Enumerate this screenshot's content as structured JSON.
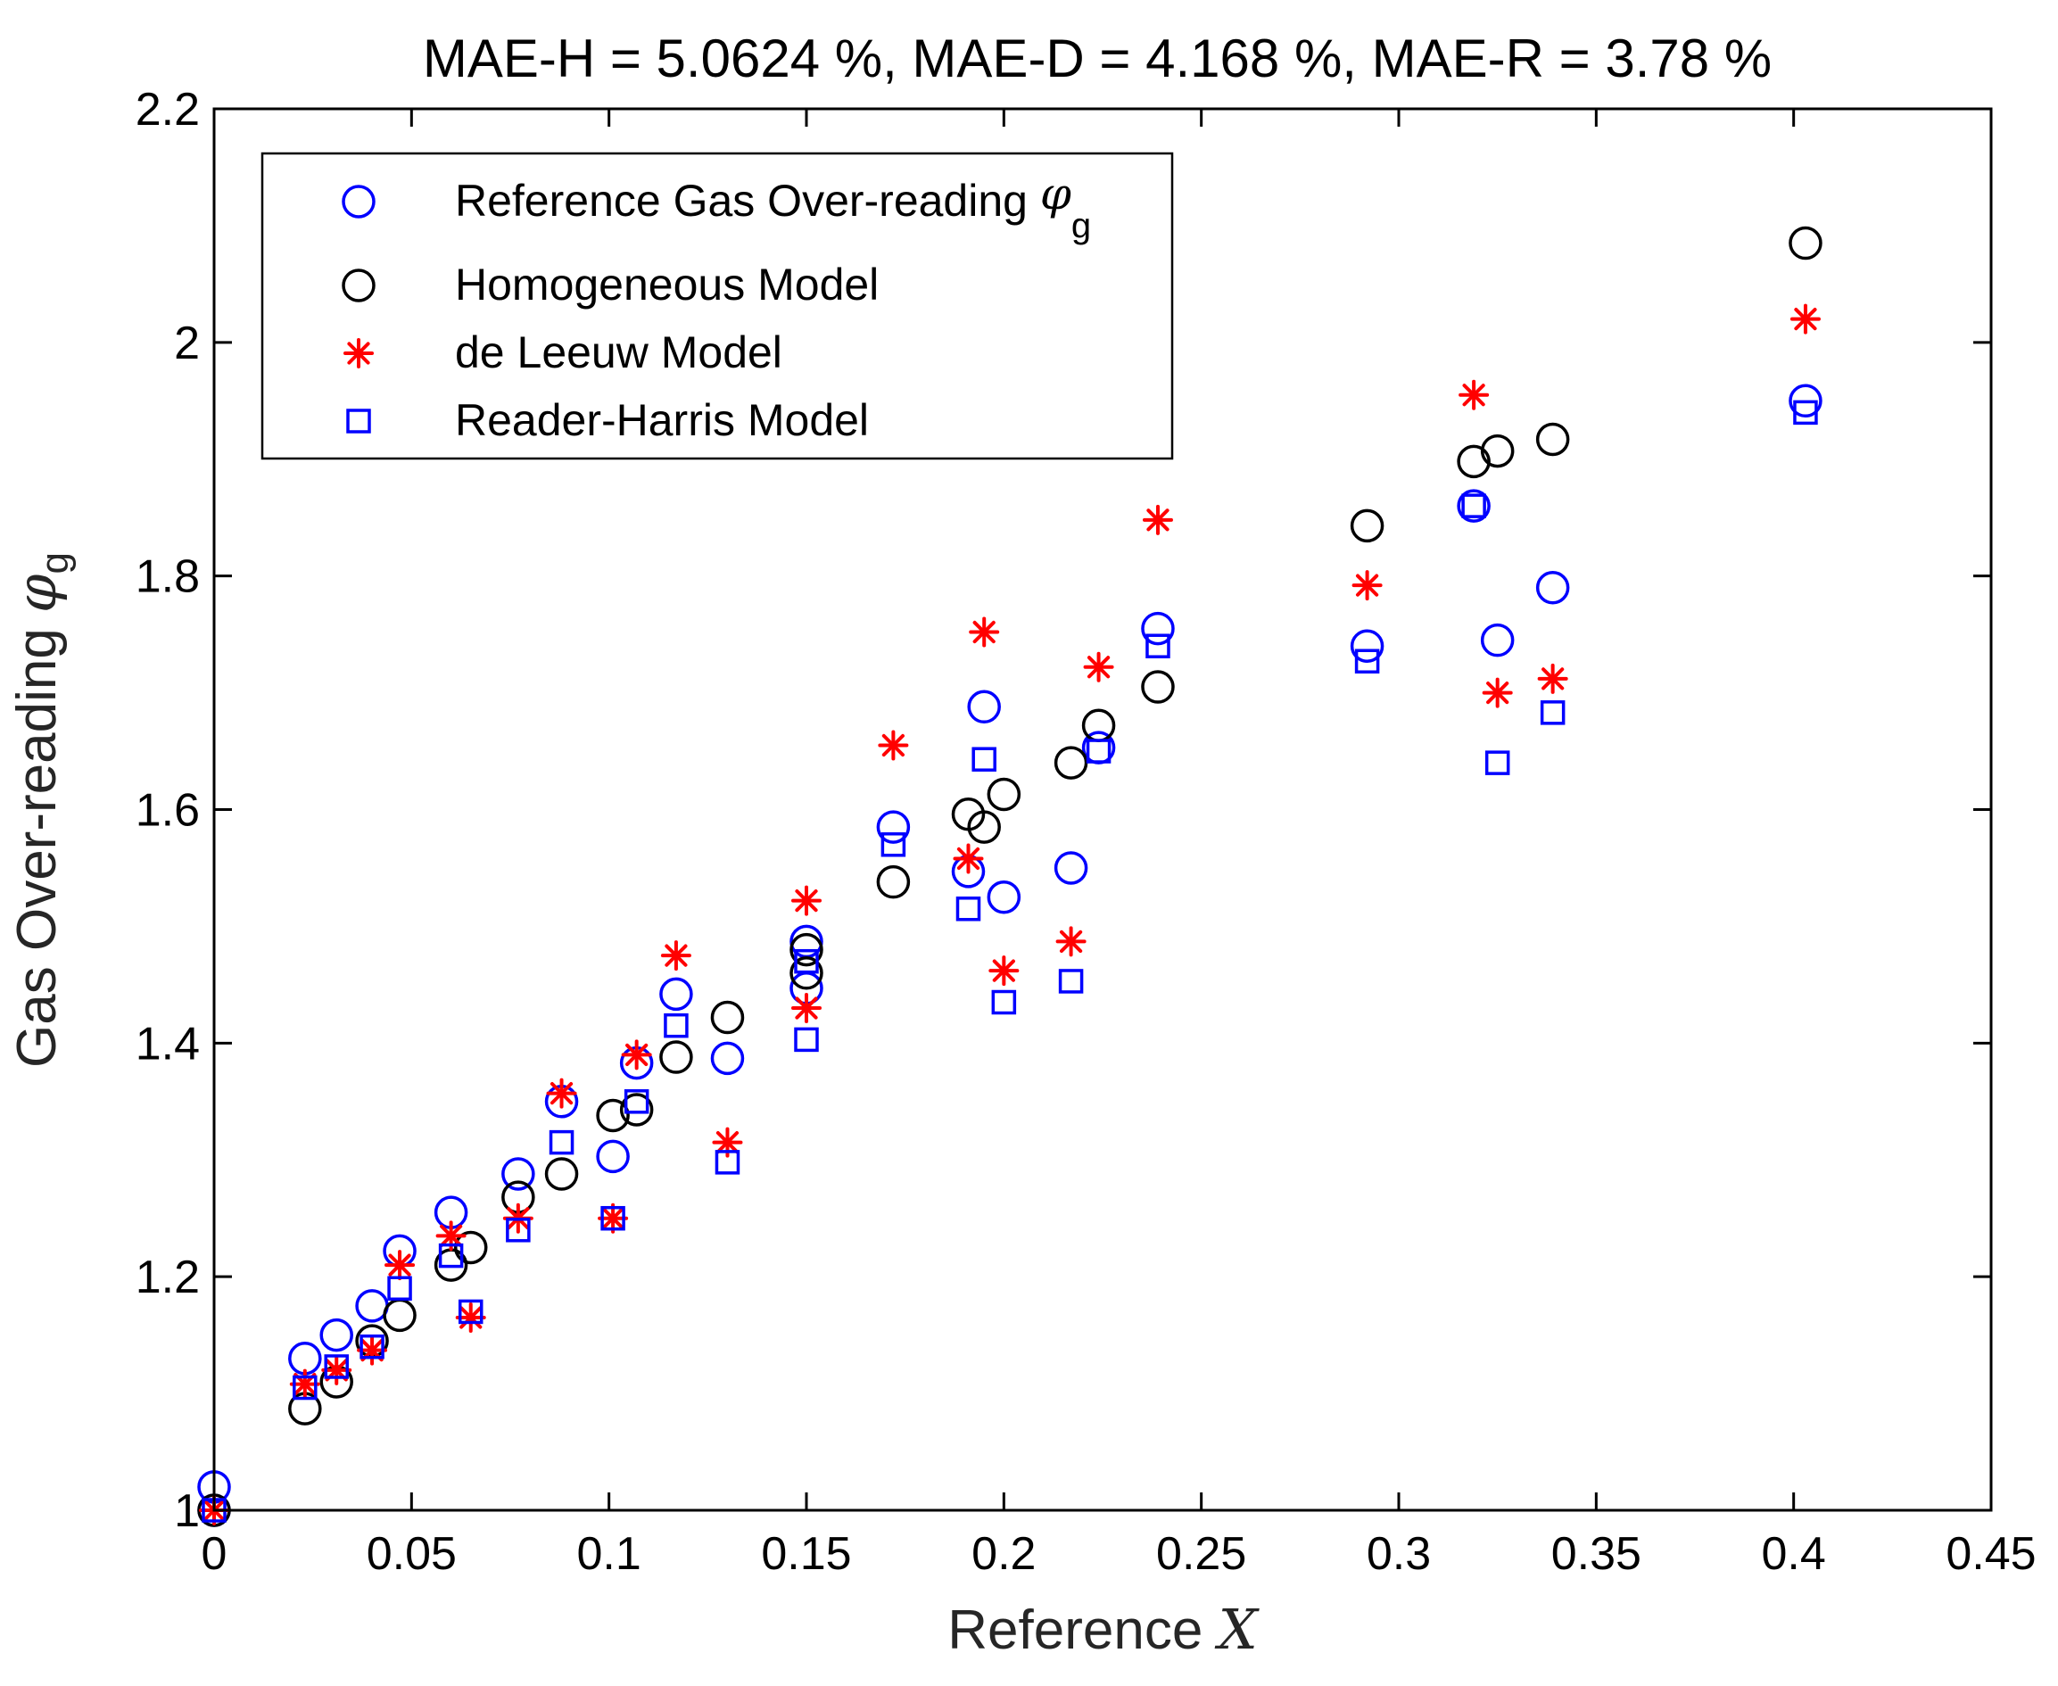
{
  "chart_data": {
    "type": "scatter",
    "title": "MAE-H = 5.0624 %,  MAE-D = 4.168 %,  MAE-R = 3.78 %",
    "xlabel": {
      "text": "Reference ",
      "var": "X"
    },
    "ylabel": {
      "text": "Gas Over-reading ",
      "sym": "φ",
      "sub": "g"
    },
    "xlim": [
      0,
      0.45
    ],
    "ylim": [
      1,
      2.2
    ],
    "xticks": [
      0,
      0.05,
      0.1,
      0.15,
      0.2,
      0.25,
      0.3,
      0.35,
      0.4,
      0.45
    ],
    "xtick_labels": [
      "0",
      "0.05",
      "0.1",
      "0.15",
      "0.2",
      "0.25",
      "0.3",
      "0.35",
      "0.4",
      "0.45"
    ],
    "yticks": [
      1,
      1.2,
      1.4,
      1.6,
      1.8,
      2,
      2.2
    ],
    "ytick_labels": [
      "1",
      "1.2",
      "1.4",
      "1.6",
      "1.8",
      "2",
      "2.2"
    ],
    "grid": false,
    "legend_position": "top-left",
    "series": [
      {
        "name": "Reference Gas Over-reading",
        "legend_sym": "φ",
        "legend_sub": "g",
        "marker": "circle",
        "color": "#0000ff",
        "points": [
          [
            0,
            1.02
          ],
          [
            0,
            1.0
          ],
          [
            0.023,
            1.13
          ],
          [
            0.031,
            1.15
          ],
          [
            0.04,
            1.175
          ],
          [
            0.047,
            1.222
          ],
          [
            0.06,
            1.255
          ],
          [
            0.077,
            1.288
          ],
          [
            0.088,
            1.35
          ],
          [
            0.101,
            1.303
          ],
          [
            0.107,
            1.383
          ],
          [
            0.117,
            1.442
          ],
          [
            0.13,
            1.387
          ],
          [
            0.15,
            1.487
          ],
          [
            0.15,
            1.447
          ],
          [
            0.172,
            1.585
          ],
          [
            0.191,
            1.547
          ],
          [
            0.195,
            1.688
          ],
          [
            0.2,
            1.525
          ],
          [
            0.217,
            1.55
          ],
          [
            0.224,
            1.653
          ],
          [
            0.239,
            1.755
          ],
          [
            0.292,
            1.74
          ],
          [
            0.319,
            1.86
          ],
          [
            0.325,
            1.745
          ],
          [
            0.339,
            1.79
          ],
          [
            0.403,
            1.95
          ]
        ]
      },
      {
        "name": "Homogeneous Model",
        "marker": "circle",
        "color": "#000000",
        "points": [
          [
            0,
            1.0
          ],
          [
            0.023,
            1.087
          ],
          [
            0.031,
            1.11
          ],
          [
            0.04,
            1.145
          ],
          [
            0.047,
            1.167
          ],
          [
            0.06,
            1.21
          ],
          [
            0.065,
            1.225
          ],
          [
            0.077,
            1.268
          ],
          [
            0.088,
            1.288
          ],
          [
            0.101,
            1.338
          ],
          [
            0.107,
            1.343
          ],
          [
            0.117,
            1.388
          ],
          [
            0.13,
            1.422
          ],
          [
            0.15,
            1.46
          ],
          [
            0.15,
            1.48
          ],
          [
            0.172,
            1.538
          ],
          [
            0.191,
            1.596
          ],
          [
            0.195,
            1.585
          ],
          [
            0.2,
            1.613
          ],
          [
            0.217,
            1.64
          ],
          [
            0.224,
            1.672
          ],
          [
            0.239,
            1.705
          ],
          [
            0.292,
            1.843
          ],
          [
            0.319,
            1.898
          ],
          [
            0.325,
            1.907
          ],
          [
            0.339,
            1.917
          ],
          [
            0.403,
            2.085
          ]
        ]
      },
      {
        "name": "de Leeuw Model",
        "marker": "asterisk",
        "color": "#ff0000",
        "points": [
          [
            0,
            1.0
          ],
          [
            0.023,
            1.108
          ],
          [
            0.031,
            1.12
          ],
          [
            0.04,
            1.137
          ],
          [
            0.047,
            1.21
          ],
          [
            0.06,
            1.235
          ],
          [
            0.065,
            1.165
          ],
          [
            0.077,
            1.25
          ],
          [
            0.088,
            1.357
          ],
          [
            0.101,
            1.25
          ],
          [
            0.107,
            1.39
          ],
          [
            0.117,
            1.475
          ],
          [
            0.13,
            1.315
          ],
          [
            0.15,
            1.522
          ],
          [
            0.15,
            1.43
          ],
          [
            0.172,
            1.655
          ],
          [
            0.191,
            1.558
          ],
          [
            0.195,
            1.752
          ],
          [
            0.2,
            1.462
          ],
          [
            0.217,
            1.487
          ],
          [
            0.224,
            1.722
          ],
          [
            0.239,
            1.848
          ],
          [
            0.292,
            1.792
          ],
          [
            0.319,
            1.955
          ],
          [
            0.325,
            1.7
          ],
          [
            0.339,
            1.712
          ],
          [
            0.403,
            2.02
          ]
        ]
      },
      {
        "name": "Reader-Harris Model",
        "marker": "square",
        "color": "#0000ff",
        "points": [
          [
            0,
            1.0
          ],
          [
            0.023,
            1.105
          ],
          [
            0.031,
            1.123
          ],
          [
            0.04,
            1.14
          ],
          [
            0.047,
            1.19
          ],
          [
            0.06,
            1.218
          ],
          [
            0.065,
            1.17
          ],
          [
            0.077,
            1.24
          ],
          [
            0.088,
            1.315
          ],
          [
            0.101,
            1.25
          ],
          [
            0.107,
            1.35
          ],
          [
            0.117,
            1.415
          ],
          [
            0.13,
            1.298
          ],
          [
            0.15,
            1.47
          ],
          [
            0.15,
            1.403
          ],
          [
            0.172,
            1.57
          ],
          [
            0.191,
            1.515
          ],
          [
            0.195,
            1.643
          ],
          [
            0.2,
            1.435
          ],
          [
            0.217,
            1.453
          ],
          [
            0.224,
            1.65
          ],
          [
            0.239,
            1.74
          ],
          [
            0.292,
            1.727
          ],
          [
            0.319,
            1.86
          ],
          [
            0.325,
            1.64
          ],
          [
            0.339,
            1.683
          ],
          [
            0.403,
            1.94
          ]
        ]
      }
    ]
  }
}
